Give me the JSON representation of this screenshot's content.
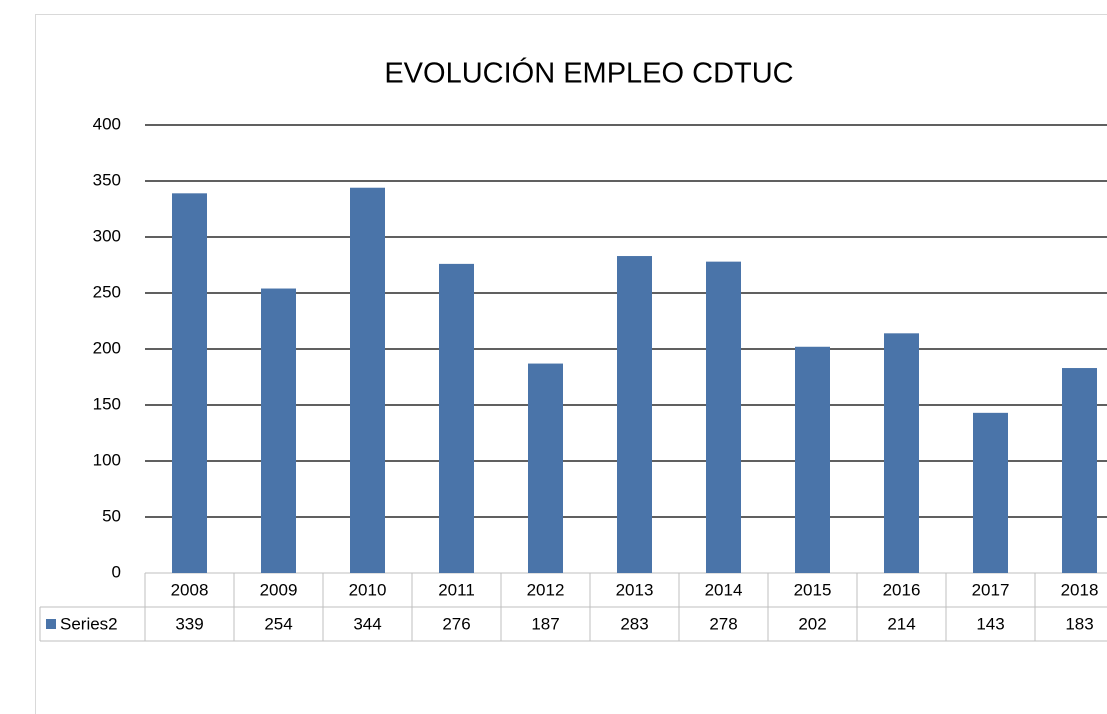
{
  "chart_data": {
    "type": "bar",
    "title": "EVOLUCIÓN EMPLEO CDTUC",
    "categories": [
      "2008",
      "2009",
      "2010",
      "2011",
      "2012",
      "2013",
      "2014",
      "2015",
      "2016",
      "2017",
      "2018"
    ],
    "series": [
      {
        "name": "Series2",
        "color": "#4a74a9",
        "values": [
          339,
          254,
          344,
          276,
          187,
          283,
          278,
          202,
          214,
          143,
          183
        ]
      }
    ],
    "ylim": [
      0,
      400
    ],
    "yticks": [
      0,
      50,
      100,
      150,
      200,
      250,
      300,
      350,
      400
    ],
    "grid": true,
    "data_table": true
  }
}
